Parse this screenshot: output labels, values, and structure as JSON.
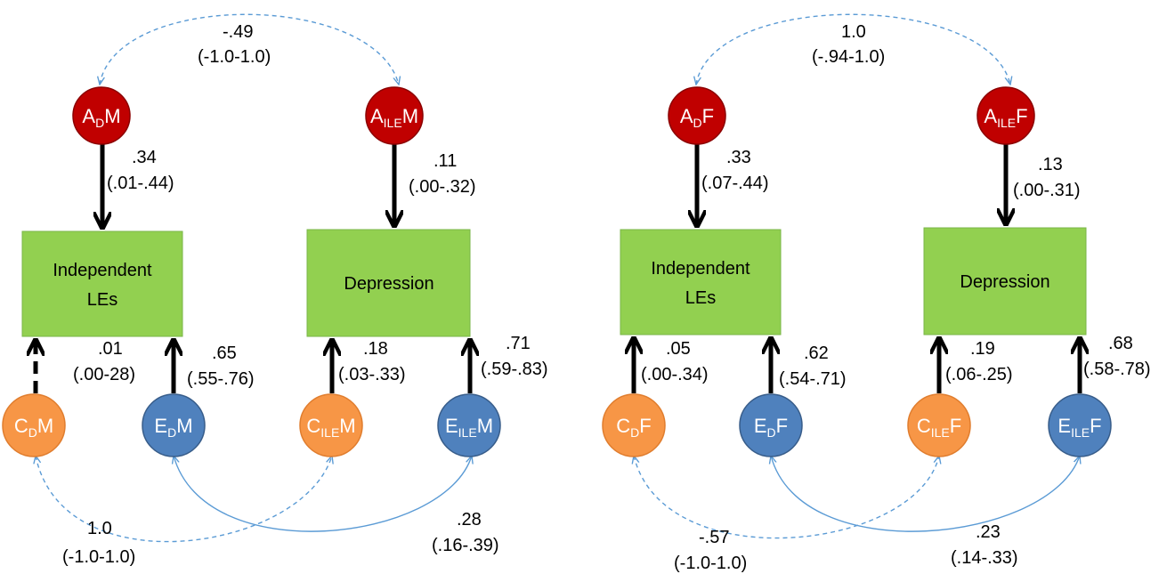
{
  "colors": {
    "a_node": "#c00000",
    "a_node_stroke": "#8b0000",
    "c_node": "#f79646",
    "c_node_stroke": "#e07d2e",
    "e_node": "#4f81bd",
    "e_node_stroke": "#385d8a",
    "box": "#92d050",
    "box_stroke": "#7ab648",
    "dashed_curve": "#5b9bd5",
    "solid_curve": "#5b9bd5",
    "arrow": "#000000"
  },
  "male": {
    "box_left": {
      "line1": "Independent",
      "line2": "LEs"
    },
    "box_right": {
      "line1": "Depression"
    },
    "a_left": {
      "main": "A",
      "sub": "D",
      "suffix": "M"
    },
    "a_right": {
      "main": "A",
      "sub": "ILE",
      "suffix": "M"
    },
    "c_left": {
      "main": "C",
      "sub": "D",
      "suffix": "M"
    },
    "e_left": {
      "main": "E",
      "sub": "D",
      "suffix": "M"
    },
    "c_right": {
      "main": "C",
      "sub": "ILE",
      "suffix": "M"
    },
    "e_right": {
      "main": "E",
      "sub": "ILE",
      "suffix": "M"
    },
    "a_corr": {
      "est": "-.49",
      "ci": "(-1.0-1.0)"
    },
    "a_left_path": {
      "est": ".34",
      "ci": "(.01-.44)"
    },
    "a_right_path": {
      "est": ".11",
      "ci": "(.00-.32)"
    },
    "c_left_path": {
      "est": ".01",
      "ci": "(.00-28)"
    },
    "e_left_path": {
      "est": ".65",
      "ci": "(.55-.76)"
    },
    "c_right_path": {
      "est": ".18",
      "ci": "(.03-.33)"
    },
    "e_right_path": {
      "est": ".71",
      "ci": "(.59-.83)"
    },
    "c_corr": {
      "est": "1.0",
      "ci": "(-1.0-1.0)"
    },
    "e_corr": {
      "est": ".28",
      "ci": "(.16-.39)"
    }
  },
  "female": {
    "box_left": {
      "line1": "Independent",
      "line2": "LEs"
    },
    "box_right": {
      "line1": "Depression"
    },
    "a_left": {
      "main": "A",
      "sub": "D",
      "suffix": "F"
    },
    "a_right": {
      "main": "A",
      "sub": "ILE",
      "suffix": "F"
    },
    "c_left": {
      "main": "C",
      "sub": "D",
      "suffix": "F"
    },
    "e_left": {
      "main": "E",
      "sub": "D",
      "suffix": "F"
    },
    "c_right": {
      "main": "C",
      "sub": "ILE",
      "suffix": "F"
    },
    "e_right": {
      "main": "E",
      "sub": "ILE",
      "suffix": "F"
    },
    "a_corr": {
      "est": "1.0",
      "ci": "(-.94-1.0)"
    },
    "a_left_path": {
      "est": ".33",
      "ci": "(.07-.44)"
    },
    "a_right_path": {
      "est": ".13",
      "ci": "(.00-.31)"
    },
    "c_left_path": {
      "est": ".05",
      "ci": "(.00-.34)"
    },
    "e_left_path": {
      "est": ".62",
      "ci": "(.54-.71)"
    },
    "c_right_path": {
      "est": ".19",
      "ci": "(.06-.25)"
    },
    "e_right_path": {
      "est": ".68",
      "ci": "(.58-.78)"
    },
    "c_corr": {
      "est": "-.57",
      "ci": "(-1.0-1.0)"
    },
    "e_corr": {
      "est": ".23",
      "ci": "(.14-.33)"
    }
  }
}
